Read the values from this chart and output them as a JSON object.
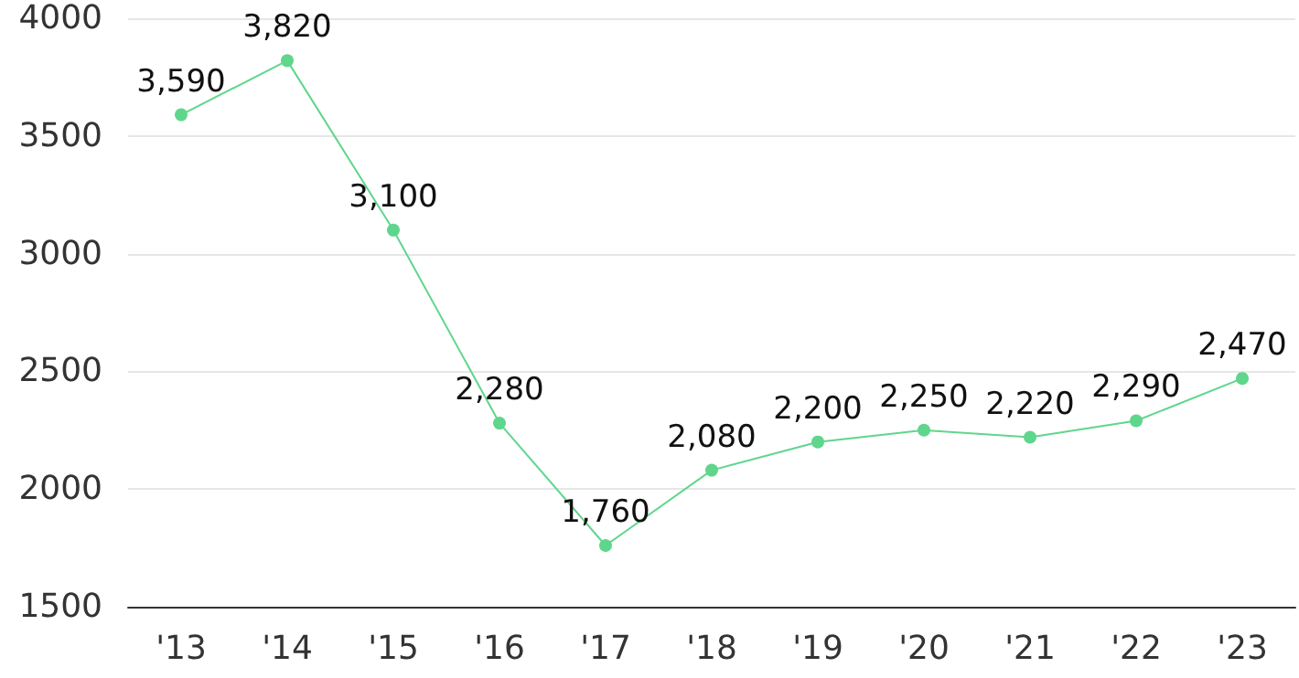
{
  "chart_data": {
    "type": "line",
    "categories": [
      "'13",
      "'14",
      "'15",
      "'16",
      "'17",
      "'18",
      "'19",
      "'20",
      "'21",
      "'22",
      "'23"
    ],
    "values": [
      3590,
      3820,
      3100,
      2280,
      1760,
      2080,
      2200,
      2250,
      2220,
      2290,
      2470
    ],
    "value_labels": [
      "3,590",
      "3,820",
      "3,100",
      "2,280",
      "1,760",
      "2,080",
      "2,200",
      "2,250",
      "2,220",
      "2,290",
      "2,470"
    ],
    "color": "#5fd68c",
    "ylim": [
      1500,
      4000
    ],
    "yticks": [
      1500,
      2000,
      2500,
      3000,
      3500,
      4000
    ],
    "grid": "y",
    "marker": "circle",
    "line_style": "solid"
  }
}
